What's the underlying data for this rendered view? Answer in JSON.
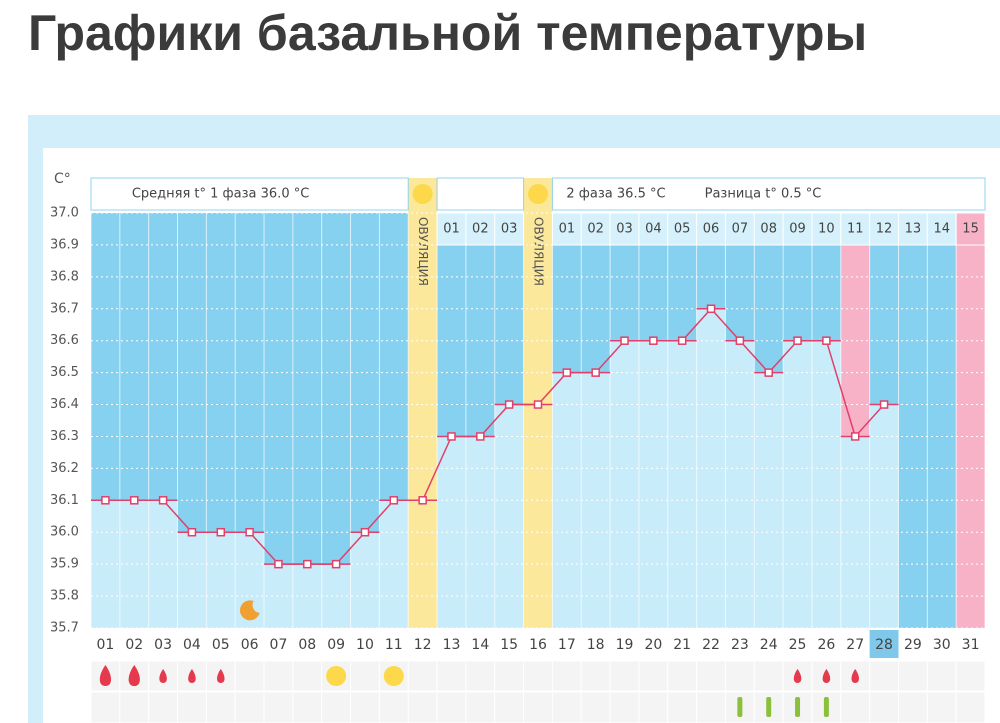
{
  "header": {
    "title": "Графики базальной температуры"
  },
  "chart_data": {
    "type": "line",
    "y_unit": "C°",
    "summary": [
      "Средняя t° 1 фаза 36.0 °C",
      "2 фаза 36.5 °C",
      "Разница t° 0.5 °C"
    ],
    "ovulation_label": "ОВУЛЯЦИЯ",
    "categories": [
      "01",
      "02",
      "03",
      "04",
      "05",
      "06",
      "07",
      "08",
      "09",
      "10",
      "11",
      "12",
      "13",
      "14",
      "15",
      "16",
      "17",
      "18",
      "19",
      "20",
      "21",
      "22",
      "23",
      "24",
      "25",
      "26",
      "27",
      "28",
      "29",
      "30",
      "31"
    ],
    "cycle_day_labels": [
      null,
      null,
      null,
      null,
      null,
      null,
      null,
      null,
      null,
      null,
      null,
      null,
      "01",
      "02",
      "03",
      null,
      "01",
      "02",
      "03",
      "04",
      "05",
      "06",
      "07",
      "08",
      "09",
      "10",
      "11",
      "12",
      "13",
      "14",
      "15"
    ],
    "series": [
      {
        "color": "#e0406a",
        "values": [
          36.1,
          36.1,
          36.1,
          36.0,
          36.0,
          36.0,
          35.9,
          35.9,
          35.9,
          36.0,
          36.1,
          36.1,
          36.3,
          36.3,
          36.4,
          36.4,
          36.5,
          36.5,
          36.6,
          36.6,
          36.6,
          36.7,
          36.6,
          36.5,
          36.6,
          36.6,
          36.3,
          36.4,
          null,
          null,
          null
        ]
      }
    ],
    "ylim": [
      35.7,
      37.0
    ],
    "yticks": [
      {
        "value": 37,
        "label": "37.0"
      },
      36.9,
      36.8,
      36.7,
      36.6,
      36.5,
      36.4,
      36.3,
      36.2,
      36.1,
      {
        "value": 36,
        "label": "36.0"
      },
      35.9,
      35.8,
      35.7
    ],
    "grid": true,
    "ovulation_days": [
      12,
      16
    ],
    "highlight_days": [
      27,
      31
    ],
    "current_day": 28,
    "bleeding": [
      {
        "day": 1,
        "level": 2
      },
      {
        "day": 2,
        "level": 2
      },
      {
        "day": 3,
        "level": 1
      },
      {
        "day": 4,
        "level": 1
      },
      {
        "day": 5,
        "level": 1
      },
      {
        "day": 25,
        "level": 1
      },
      {
        "day": 26,
        "level": 1
      },
      {
        "day": 27,
        "level": 1
      }
    ],
    "sun_days": [
      9,
      11
    ],
    "moon_days": [
      6
    ],
    "mark_days": [
      23,
      24,
      25,
      26
    ]
  }
}
